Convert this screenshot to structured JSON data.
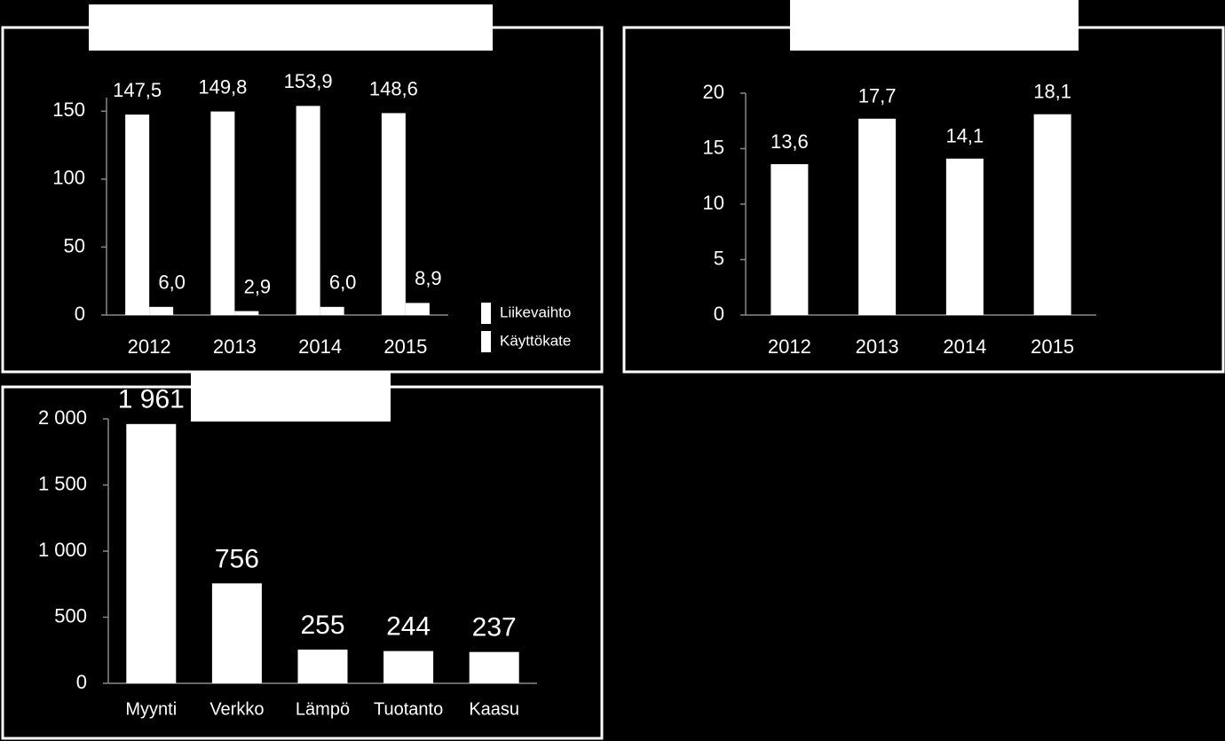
{
  "chart_data": [
    {
      "type": "bar",
      "categories": [
        "2012",
        "2013",
        "2014",
        "2015"
      ],
      "series": [
        {
          "name": "Liikevaihto",
          "color": "#ffffff",
          "values": [
            147.5,
            149.8,
            153.9,
            148.6
          ],
          "value_labels": [
            "147,5",
            "149,8",
            "153,9",
            "148,6"
          ]
        },
        {
          "name": "Käyttökate",
          "color": "#ffffff",
          "values": [
            6.0,
            2.9,
            6.0,
            8.9
          ],
          "value_labels": [
            "6,0",
            "2,9",
            "6,0",
            "8,9"
          ]
        }
      ],
      "ylim": [
        0,
        160
      ],
      "yticks": [
        0,
        50,
        100,
        150
      ],
      "grid": false,
      "legend": "right"
    },
    {
      "type": "bar",
      "categories": [
        "2012",
        "2013",
        "2014",
        "2015"
      ],
      "color": "#ffffff",
      "values": [
        13.6,
        17.7,
        14.1,
        18.1
      ],
      "value_labels": [
        "13,6",
        "17,7",
        "14,1",
        "18,1"
      ],
      "ylim": [
        0,
        20
      ],
      "yticks": [
        0,
        5,
        10,
        15,
        20
      ],
      "grid": false
    },
    {
      "type": "bar",
      "categories": [
        "Myynti",
        "Verkko",
        "Lämpö",
        "Tuotanto",
        "Kaasu"
      ],
      "color": "#ffffff",
      "values": [
        1961,
        756,
        255,
        244,
        237
      ],
      "value_labels": [
        "1 961",
        "756",
        "255",
        "244",
        "237"
      ],
      "ylim": [
        0,
        2000
      ],
      "yticks": [
        0,
        500,
        {
          "value": 1000,
          "label": "1 000"
        },
        {
          "value": 1500,
          "label": "1 500"
        },
        {
          "value": 2000,
          "label": "2 000"
        }
      ],
      "grid": false
    }
  ]
}
